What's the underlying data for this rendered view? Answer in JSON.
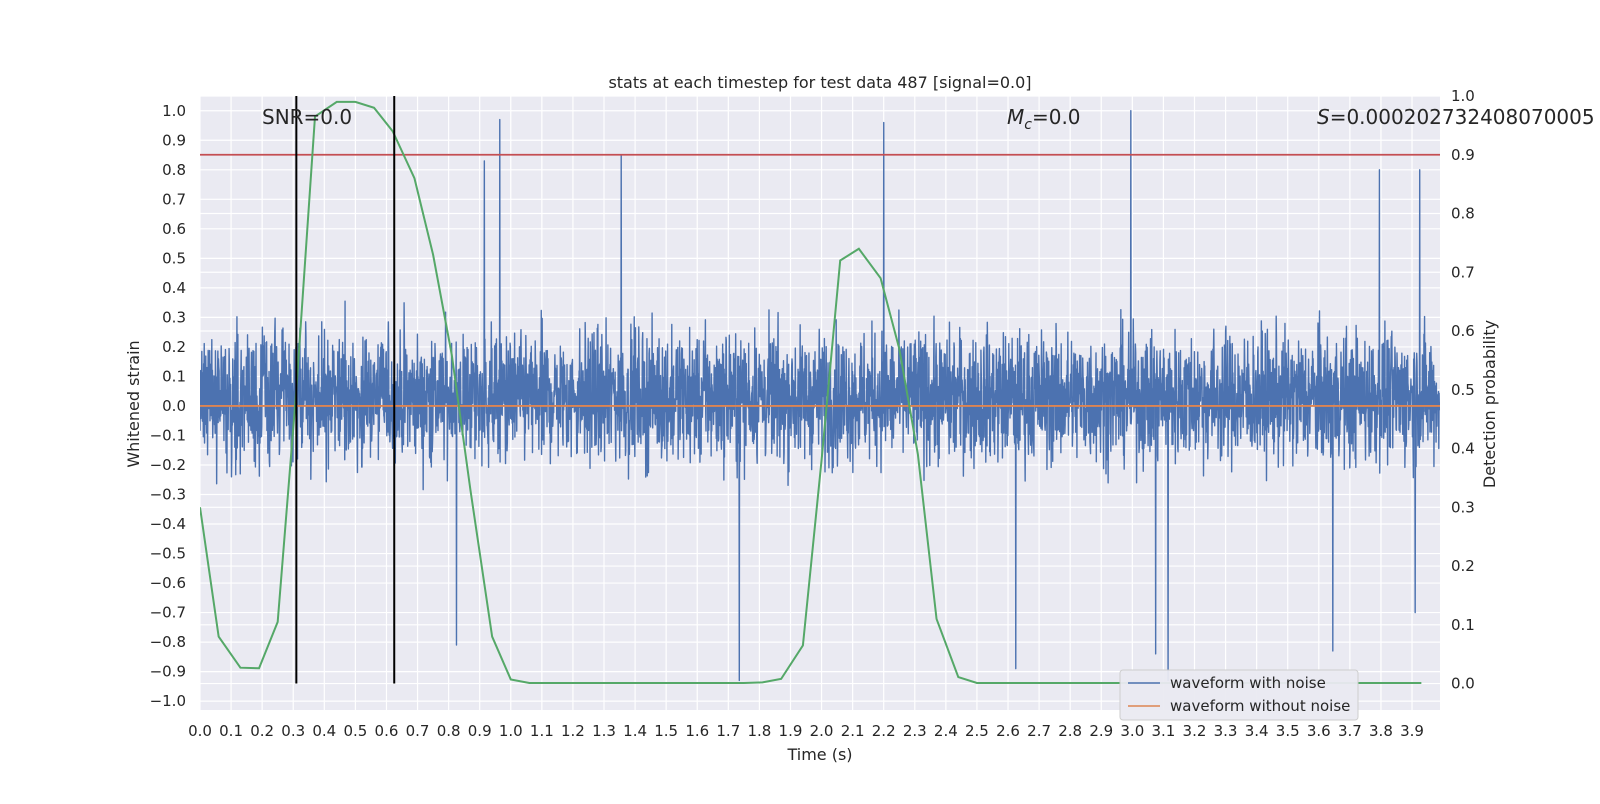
{
  "chart_data": {
    "type": "line",
    "title": "stats at each timestep for test data 487 [signal=0.0]",
    "xlabel": "Time (s)",
    "ylabel": "Whitened strain",
    "y2label": "Detection probability",
    "xlim": [
      0.0,
      3.99
    ],
    "ylim": [
      -1.03,
      1.05
    ],
    "y2lim": [
      -0.045,
      1.0
    ],
    "xticks": [
      0.0,
      0.1,
      0.2,
      0.3,
      0.4,
      0.5,
      0.6,
      0.7,
      0.8,
      0.9,
      1.0,
      1.1,
      1.2,
      1.3,
      1.4,
      1.5,
      1.6,
      1.7,
      1.8,
      1.9,
      2.0,
      2.1,
      2.2,
      2.3,
      2.4,
      2.5,
      2.6,
      2.7,
      2.8,
      2.9,
      3.0,
      3.1,
      3.2,
      3.3,
      3.4,
      3.5,
      3.6,
      3.7,
      3.8,
      3.9
    ],
    "xtick_labels": [
      "0.0",
      "0.1",
      "0.2",
      "0.3",
      "0.4",
      "0.5",
      "0.6",
      "0.7",
      "0.8",
      "0.9",
      "1.0",
      "1.1",
      "1.2",
      "1.3",
      "1.4",
      "1.5",
      "1.6",
      "1.7",
      "1.8",
      "1.9",
      "2.0",
      "2.1",
      "2.2",
      "2.3",
      "2.4",
      "2.5",
      "2.6",
      "2.7",
      "2.8",
      "2.9",
      "3.0",
      "3.1",
      "3.2",
      "3.3",
      "3.4",
      "3.5",
      "3.6",
      "3.7",
      "3.8",
      "3.9"
    ],
    "yticks": [
      1.0,
      0.9,
      0.8,
      0.7,
      0.6,
      0.5,
      0.4,
      0.3,
      0.2,
      0.1,
      0.0,
      -0.1,
      -0.2,
      -0.3,
      -0.4,
      -0.5,
      -0.6,
      -0.7,
      -0.8,
      -0.9,
      -1.0
    ],
    "ytick_labels": [
      "1.0",
      "0.9",
      "0.8",
      "0.7",
      "0.6",
      "0.5",
      "0.4",
      "0.3",
      "0.2",
      "0.1",
      "0.0",
      "−0.1",
      "−0.2",
      "−0.3",
      "−0.4",
      "−0.5",
      "−0.6",
      "−0.7",
      "−0.8",
      "−0.9",
      "−1.0"
    ],
    "y2ticks": [
      1.0,
      0.9,
      0.8,
      0.7,
      0.6,
      0.5,
      0.4,
      0.3,
      0.2,
      0.1,
      0.0
    ],
    "y2tick_labels": [
      "1.0",
      "0.9",
      "0.8",
      "0.7",
      "0.6",
      "0.5",
      "0.4",
      "0.3",
      "0.2",
      "0.1",
      "0.0"
    ],
    "grid": true,
    "legend_position": "lower-right",
    "series": [
      {
        "name": "waveform with noise",
        "color": "#4c72b0",
        "axis": "left",
        "kind": "noise",
        "note": "dense noisy trace spanning approx -0.9 to 1.0",
        "peaks": [
          [
            0.965,
            0.97
          ],
          [
            2.2,
            0.96
          ],
          [
            2.995,
            1.0
          ],
          [
            0.915,
            0.83
          ],
          [
            1.355,
            0.85
          ],
          [
            3.795,
            0.8
          ],
          [
            3.925,
            0.8
          ]
        ],
        "troughs": [
          [
            1.735,
            -0.93
          ],
          [
            3.115,
            -0.93
          ],
          [
            0.825,
            -0.81
          ],
          [
            2.625,
            -0.89
          ],
          [
            3.075,
            -0.84
          ],
          [
            3.645,
            -0.83
          ],
          [
            3.91,
            -0.7
          ]
        ]
      },
      {
        "name": "waveform without noise",
        "color": "#dd8452",
        "axis": "left",
        "x": [
          0.0,
          3.99
        ],
        "values": [
          0.0,
          0.0
        ]
      },
      {
        "color": "#55a868",
        "axis": "right",
        "x": [
          0.0,
          0.06,
          0.13,
          0.19,
          0.25,
          0.31,
          0.37,
          0.44,
          0.5,
          0.56,
          0.62,
          0.69,
          0.75,
          0.81,
          0.87,
          0.94,
          1.0,
          1.06,
          1.12,
          1.19,
          1.25,
          1.31,
          1.37,
          1.44,
          1.5,
          1.56,
          1.62,
          1.69,
          1.75,
          1.81,
          1.87,
          1.94,
          2.0,
          2.06,
          2.12,
          2.19,
          2.25,
          2.31,
          2.37,
          2.44,
          2.5,
          2.56,
          2.62,
          2.69,
          2.75,
          2.81,
          2.87,
          2.94,
          3.0,
          3.06,
          3.12,
          3.19,
          3.25,
          3.31,
          3.37,
          3.44,
          3.5,
          3.56,
          3.62,
          3.69,
          3.75,
          3.81,
          3.87,
          3.93
        ],
        "values": [
          0.3,
          0.08,
          0.027,
          0.026,
          0.105,
          0.5,
          0.965,
          0.99,
          0.99,
          0.98,
          0.94,
          0.86,
          0.73,
          0.56,
          0.33,
          0.08,
          0.007,
          0.001,
          0.001,
          0.001,
          0.001,
          0.001,
          0.001,
          0.001,
          0.001,
          0.001,
          0.001,
          0.001,
          0.001,
          0.002,
          0.008,
          0.065,
          0.38,
          0.72,
          0.74,
          0.69,
          0.57,
          0.39,
          0.11,
          0.011,
          0.001,
          0.001,
          0.001,
          0.001,
          0.001,
          0.001,
          0.001,
          0.001,
          0.001,
          0.001,
          0.001,
          0.001,
          0.001,
          0.001,
          0.001,
          0.001,
          0.001,
          0.001,
          0.001,
          0.001,
          0.001,
          0.001,
          0.001,
          0.001
        ]
      }
    ],
    "vlines": [
      {
        "x": 0.31,
        "color": "#000000",
        "ymin": 0.0,
        "ymax": 1.0
      },
      {
        "x": 0.625,
        "color": "#000000",
        "ymin": 0.0,
        "ymax": 1.0
      }
    ],
    "hlines": [
      {
        "y2": 0.9,
        "color": "#c44e52"
      }
    ],
    "annotations": {
      "snr": "SNR=0.0",
      "mc_symbol": "M",
      "mc_sub": "c",
      "mc_value": "=0.0",
      "s_symbol": "S",
      "s_value": "=0.00020273240807000​5"
    }
  }
}
